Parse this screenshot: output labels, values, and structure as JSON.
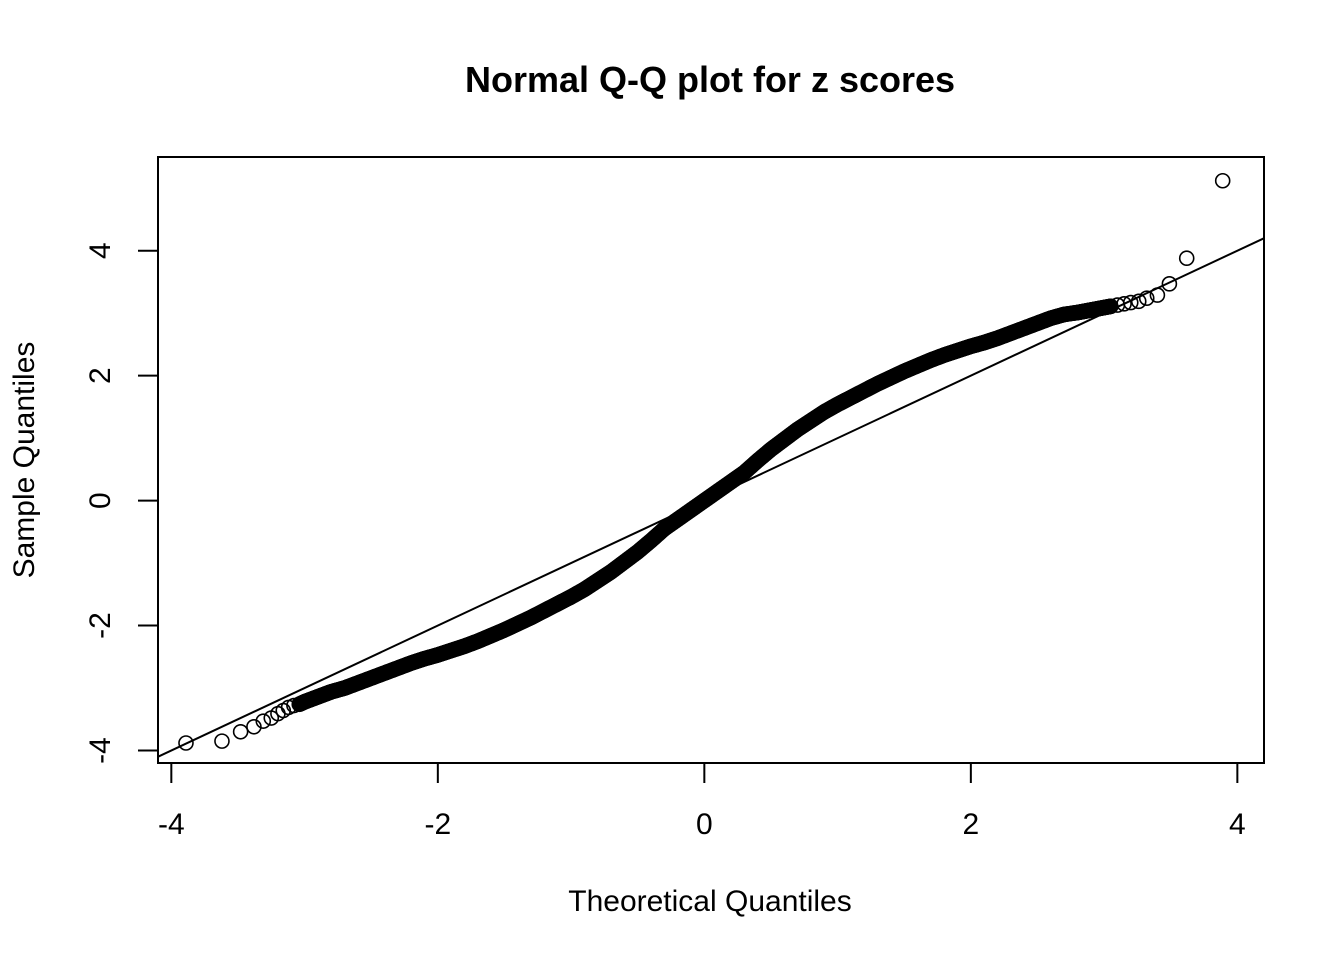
{
  "chart_data": {
    "type": "scatter",
    "title": "Normal Q-Q plot for z scores",
    "xlabel": "Theoretical Quantiles",
    "ylabel": "Sample Quantiles",
    "xlim": [
      -4.1,
      4.2
    ],
    "ylim": [
      -4.2,
      5.5
    ],
    "x_ticks": [
      -4,
      -2,
      0,
      2,
      4
    ],
    "x_tick_labels": [
      "-4",
      "-2",
      "0",
      "2",
      "4"
    ],
    "y_ticks": [
      -4,
      -2,
      0,
      2,
      4
    ],
    "y_tick_labels": [
      "-4",
      "-2",
      "0",
      "2",
      "4"
    ],
    "grid": false,
    "legend": "none",
    "reference_line": {
      "slope": 1.0,
      "intercept": 0.0
    },
    "points": [
      [
        -3.89,
        -3.88
      ],
      [
        -3.62,
        -3.85
      ],
      [
        -3.48,
        -3.7
      ],
      [
        -3.38,
        -3.62
      ],
      [
        -3.31,
        -3.53
      ],
      [
        -3.25,
        -3.48
      ],
      [
        -3.2,
        -3.41
      ],
      [
        -3.16,
        -3.36
      ],
      [
        -3.12,
        -3.31
      ],
      [
        -3.08,
        -3.28
      ],
      [
        -3.04,
        -3.26
      ],
      [
        -3.0,
        -3.22
      ],
      [
        -2.95,
        -3.18
      ],
      [
        -2.9,
        -3.14
      ],
      [
        -2.85,
        -3.1
      ],
      [
        -2.8,
        -3.06
      ],
      [
        -2.7,
        -3.0
      ],
      [
        -2.6,
        -2.92
      ],
      [
        -2.5,
        -2.84
      ],
      [
        -2.4,
        -2.76
      ],
      [
        -2.3,
        -2.68
      ],
      [
        -2.2,
        -2.6
      ],
      [
        -2.1,
        -2.53
      ],
      [
        -2.0,
        -2.47
      ],
      [
        -1.9,
        -2.4
      ],
      [
        -1.8,
        -2.33
      ],
      [
        -1.7,
        -2.25
      ],
      [
        -1.6,
        -2.16
      ],
      [
        -1.5,
        -2.07
      ],
      [
        -1.4,
        -1.97
      ],
      [
        -1.3,
        -1.87
      ],
      [
        -1.2,
        -1.76
      ],
      [
        -1.1,
        -1.65
      ],
      [
        -1.0,
        -1.54
      ],
      [
        -0.9,
        -1.42
      ],
      [
        -0.8,
        -1.28
      ],
      [
        -0.7,
        -1.14
      ],
      [
        -0.6,
        -0.98
      ],
      [
        -0.5,
        -0.82
      ],
      [
        -0.4,
        -0.64
      ],
      [
        -0.3,
        -0.45
      ],
      [
        -0.2,
        -0.3
      ],
      [
        -0.1,
        -0.15
      ],
      [
        0.0,
        0.0
      ],
      [
        0.1,
        0.15
      ],
      [
        0.2,
        0.3
      ],
      [
        0.3,
        0.45
      ],
      [
        0.4,
        0.64
      ],
      [
        0.5,
        0.82
      ],
      [
        0.6,
        0.98
      ],
      [
        0.7,
        1.14
      ],
      [
        0.8,
        1.28
      ],
      [
        0.9,
        1.42
      ],
      [
        1.0,
        1.54
      ],
      [
        1.1,
        1.65
      ],
      [
        1.2,
        1.76
      ],
      [
        1.3,
        1.87
      ],
      [
        1.4,
        1.97
      ],
      [
        1.5,
        2.07
      ],
      [
        1.6,
        2.16
      ],
      [
        1.7,
        2.25
      ],
      [
        1.8,
        2.33
      ],
      [
        1.9,
        2.4
      ],
      [
        2.0,
        2.47
      ],
      [
        2.1,
        2.53
      ],
      [
        2.2,
        2.6
      ],
      [
        2.3,
        2.68
      ],
      [
        2.4,
        2.76
      ],
      [
        2.5,
        2.84
      ],
      [
        2.6,
        2.92
      ],
      [
        2.7,
        2.98
      ],
      [
        2.8,
        3.01
      ],
      [
        2.85,
        3.03
      ],
      [
        2.9,
        3.05
      ],
      [
        2.95,
        3.07
      ],
      [
        3.0,
        3.09
      ],
      [
        3.05,
        3.11
      ],
      [
        3.1,
        3.13
      ],
      [
        3.15,
        3.15
      ],
      [
        3.2,
        3.17
      ],
      [
        3.26,
        3.19
      ],
      [
        3.32,
        3.24
      ],
      [
        3.4,
        3.29
      ],
      [
        3.49,
        3.47
      ],
      [
        3.62,
        3.88
      ],
      [
        3.89,
        5.12
      ]
    ]
  }
}
